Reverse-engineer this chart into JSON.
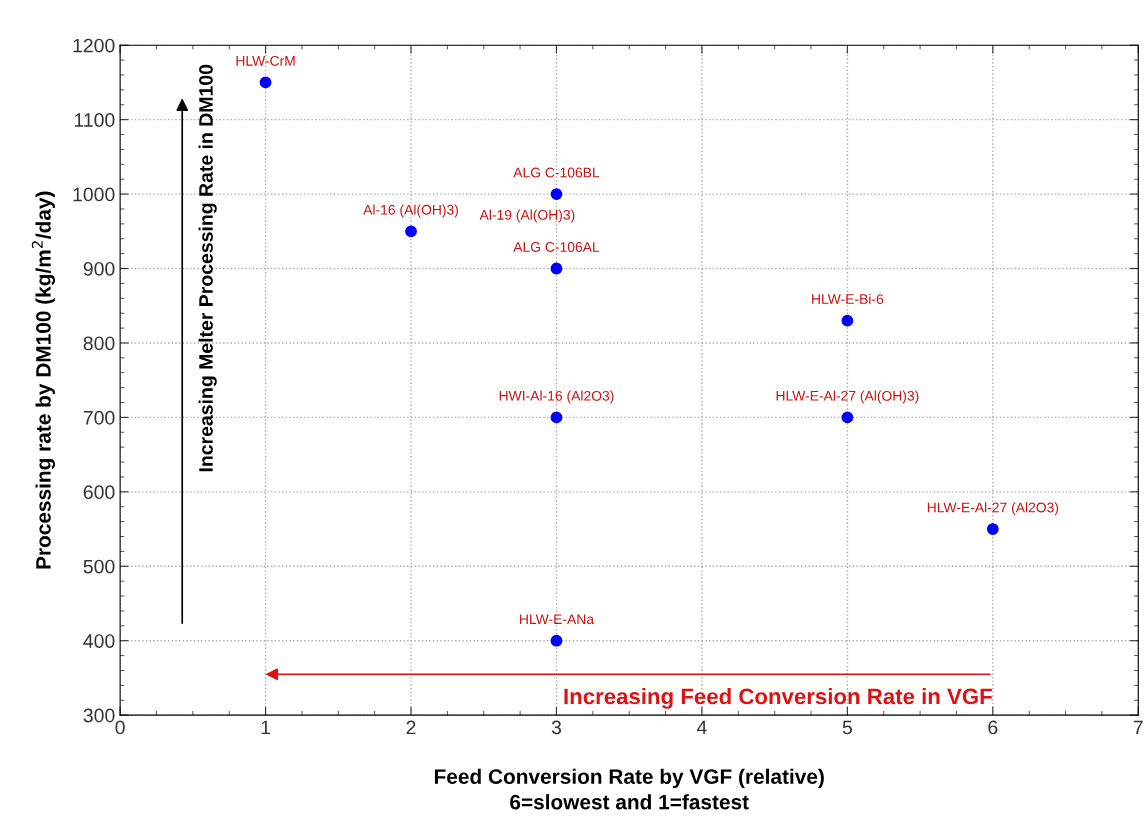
{
  "chart_data": {
    "type": "scatter",
    "xlabel": "Feed Conversion Rate by VGF (relative)\n6=slowest and 1=fastest",
    "ylabel": "Processing rate by DM100 (kg/m$^{2}$/day)",
    "x": [
      1,
      2,
      3,
      3,
      5,
      3,
      5,
      6,
      3
    ],
    "series": [
      {
        "color": "#0000ff",
        "values": [
          1150,
          950,
          1000,
          900,
          830,
          700,
          700,
          550,
          400
        ]
      }
    ],
    "marker": "circle",
    "xlim": [
      0,
      7
    ],
    "xticks": [
      0,
      1,
      2,
      3,
      4,
      5,
      6,
      7
    ],
    "ylim": [
      300,
      1200
    ],
    "yticks": [
      300,
      400,
      500,
      600,
      700,
      800,
      900,
      1000,
      1100,
      1200
    ],
    "grid": true,
    "annotations": [
      {
        "text": "HLW-CrM",
        "x": 1,
        "y": 1150
      },
      {
        "text": "Al-16 (Al(OH)3)",
        "x": 2,
        "y": 950
      },
      "Al-19 (Al(OH)3)",
      {
        "text": "ALG C-106BL",
        "x": 3,
        "y": 1000
      },
      {
        "text": "ALG C-106AL",
        "x": 3,
        "y": 900
      },
      {
        "text": "HLW-E-Bi-6",
        "x": 5,
        "y": 830
      },
      {
        "text": "HWI-Al-16 (Al2O3)",
        "x": 3,
        "y": 700
      },
      {
        "text": "HLW-E-Al-27 (Al(OH)3)",
        "x": 5,
        "y": 700
      },
      {
        "text": "HLW-E-Al-27 (Al2O3)",
        "x": 6,
        "y": 550
      },
      {
        "text": "HLW-E-ANa",
        "x": 3,
        "y": 400
      },
      "Increasing Melter Processing Rate in DM100",
      "Increasing Feed Conversion Rate in VGF"
    ]
  }
}
